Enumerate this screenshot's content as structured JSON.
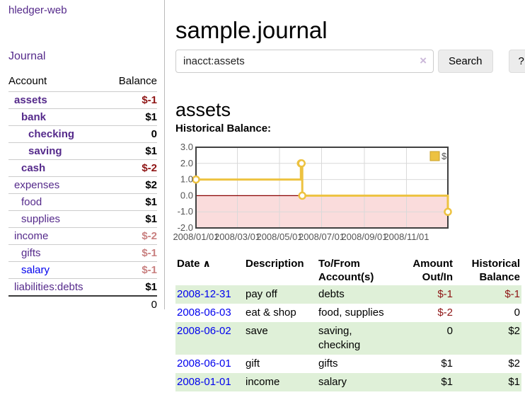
{
  "colors": {
    "link_purple": "#552a8b",
    "link_blue": "#0000ee",
    "negative_strong": "#8e1414",
    "negative_muted": "#c98080",
    "row_shade_green": "#dff0d8",
    "series_gold": "#edc240"
  },
  "sidebar": {
    "app_title": "hledger-web",
    "journal_link": "Journal",
    "accounts": {
      "header_account": "Account",
      "header_balance": "Balance",
      "rows": [
        {
          "account": "assets",
          "balance": "$-1",
          "level": 1,
          "in_query": true,
          "balance_class": "neg-strong",
          "link_style": "purple"
        },
        {
          "account": "bank",
          "balance": "$1",
          "level": 2,
          "in_query": true,
          "balance_class": "",
          "link_style": "purple"
        },
        {
          "account": "checking",
          "balance": "0",
          "level": 3,
          "in_query": true,
          "balance_class": "",
          "link_style": "purple"
        },
        {
          "account": "saving",
          "balance": "$1",
          "level": 3,
          "in_query": true,
          "balance_class": "",
          "link_style": "purple"
        },
        {
          "account": "cash",
          "balance": "$-2",
          "level": 2,
          "in_query": true,
          "balance_class": "neg-strong",
          "link_style": "purple"
        },
        {
          "account": "expenses",
          "balance": "$2",
          "level": 1,
          "in_query": false,
          "balance_class": "",
          "link_style": "purple"
        },
        {
          "account": "food",
          "balance": "$1",
          "level": 2,
          "in_query": false,
          "balance_class": "",
          "link_style": "purple"
        },
        {
          "account": "supplies",
          "balance": "$1",
          "level": 2,
          "in_query": false,
          "balance_class": "",
          "link_style": "purple"
        },
        {
          "account": "income",
          "balance": "$-2",
          "level": 1,
          "in_query": false,
          "balance_class": "neg-muted",
          "link_style": "purple"
        },
        {
          "account": "gifts",
          "balance": "$-1",
          "level": 2,
          "in_query": false,
          "balance_class": "neg-muted",
          "link_style": "purple"
        },
        {
          "account": "salary",
          "balance": "$-1",
          "level": 2,
          "in_query": false,
          "balance_class": "neg-muted",
          "link_style": "blue"
        },
        {
          "account": "liabilities:debts",
          "balance": "$1",
          "level": 1,
          "in_query": false,
          "balance_class": "",
          "link_style": "purple"
        }
      ],
      "total": "0"
    }
  },
  "main": {
    "journal_title": "sample.journal",
    "search": {
      "value": "inacct:assets",
      "clear_icon": "×",
      "search_button": "Search",
      "help_button": "?"
    },
    "account_heading": "assets",
    "chart_label": "Historical Balance:",
    "register": {
      "sort_icon": "∧",
      "headers": {
        "date": "Date",
        "description": "Description",
        "accounts": "To/From Account(s)",
        "amount": "Amount Out/In",
        "balance": "Historical Balance"
      },
      "rows": [
        {
          "date": "2008-12-31",
          "description": "pay off",
          "accounts": "debts",
          "amount": "$-1",
          "amount_negative": true,
          "balance": "$-1",
          "balance_negative": true,
          "shaded": true
        },
        {
          "date": "2008-06-03",
          "description": "eat & shop",
          "accounts": "food, supplies",
          "amount": "$-2",
          "amount_negative": true,
          "balance": "0",
          "balance_negative": false,
          "shaded": false
        },
        {
          "date": "2008-06-02",
          "description": "save",
          "accounts": "saving, checking",
          "amount": "0",
          "amount_negative": false,
          "balance": "$2",
          "balance_negative": false,
          "shaded": true
        },
        {
          "date": "2008-06-01",
          "description": "gift",
          "accounts": "gifts",
          "amount": "$1",
          "amount_negative": false,
          "balance": "$2",
          "balance_negative": false,
          "shaded": false
        },
        {
          "date": "2008-01-01",
          "description": "income",
          "accounts": "salary",
          "amount": "$1",
          "amount_negative": false,
          "balance": "$1",
          "balance_negative": false,
          "shaded": true
        }
      ]
    }
  },
  "chart_data": {
    "type": "line",
    "style": "step",
    "series": [
      {
        "name": "$",
        "color": "#edc240",
        "points_x_days_from_2008_01_01": [
          0,
          152,
          153,
          154,
          365
        ],
        "points_y_balance": [
          1,
          2,
          2,
          0,
          -1
        ]
      }
    ],
    "x_tick_pos": [
      0,
      60,
      121,
      182,
      244,
      305
    ],
    "x_tick_labels": [
      "2008/01/01",
      "2008/03/01",
      "2008/05/01",
      "2008/07/01",
      "2008/09/01",
      "2008/11/01"
    ],
    "y_ticks": [
      "3.0",
      "2.0",
      "1.0",
      "0.0",
      "-1.0",
      "-2.0"
    ],
    "xlim": [
      0,
      365
    ],
    "ylim": [
      -2,
      3
    ],
    "grid": true,
    "legend_position": "top-right",
    "negative_region_fill": "#fadcdc",
    "zero_line_color": "#8b0000",
    "grid_color": "#d9d9d9",
    "border_color": "#404040"
  }
}
